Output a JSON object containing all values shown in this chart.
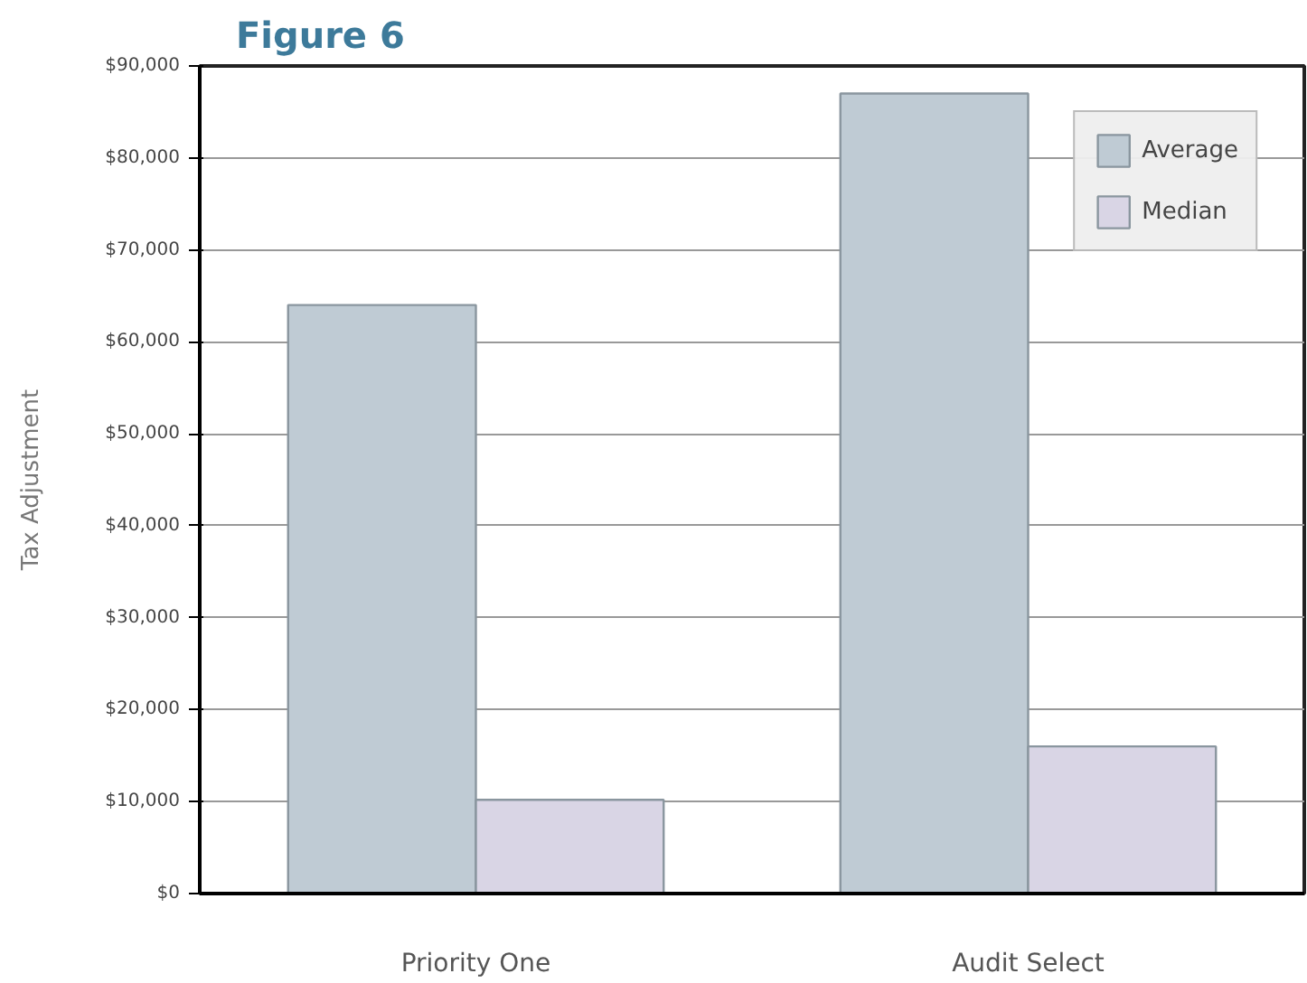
{
  "chart_data": {
    "type": "bar",
    "title": "Figure 6",
    "ylabel": "Tax Adjustment",
    "categories": [
      "Priority One",
      "Audit Select"
    ],
    "series": [
      {
        "name": "Average",
        "color": "#bfcbd4",
        "values": [
          64000,
          87000
        ]
      },
      {
        "name": "Median",
        "color": "#d9d5e5",
        "values": [
          10200,
          16000
        ]
      }
    ],
    "ylim": [
      0,
      90000
    ],
    "yticks": [
      {
        "value": 0,
        "label": "$0"
      },
      {
        "value": 10000,
        "label": "$10,000"
      },
      {
        "value": 20000,
        "label": "$20,000"
      },
      {
        "value": 30000,
        "label": "$30,000"
      },
      {
        "value": 40000,
        "label": "$40,000"
      },
      {
        "value": 50000,
        "label": "$50,000"
      },
      {
        "value": 60000,
        "label": "$60,000"
      },
      {
        "value": 70000,
        "label": "$70,000"
      },
      {
        "value": 80000,
        "label": "$80,000"
      },
      {
        "value": 90000,
        "label": "$90,000"
      }
    ],
    "grid": "y",
    "legend": "top right"
  }
}
